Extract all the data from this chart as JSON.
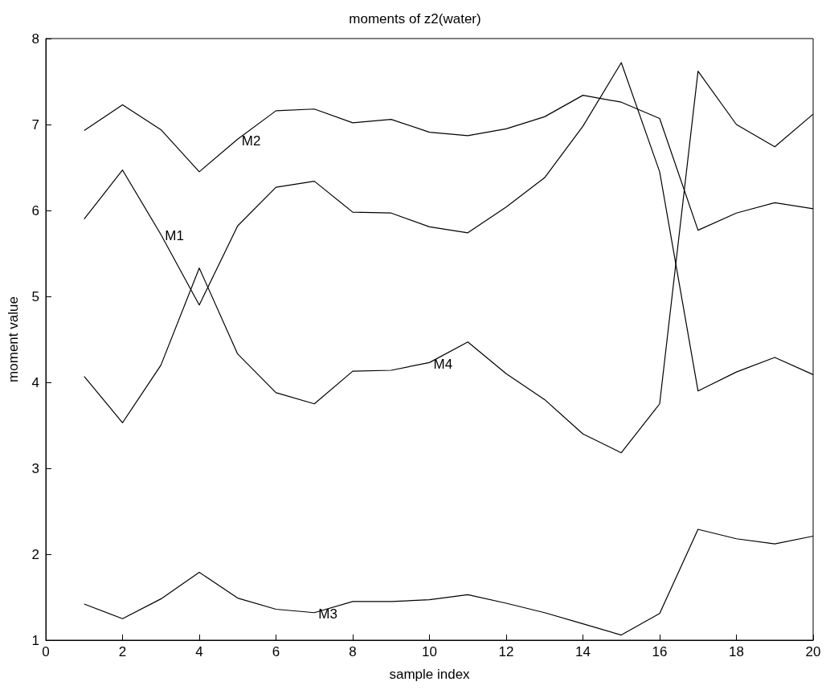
{
  "chart_data": {
    "type": "line",
    "title": "moments of z2(water)",
    "xlabel": "sample index",
    "ylabel": "moment value",
    "x": [
      1,
      2,
      3,
      4,
      5,
      6,
      7,
      8,
      9,
      10,
      11,
      12,
      13,
      14,
      15,
      16,
      17,
      18,
      19,
      20
    ],
    "series": [
      {
        "name": "M1",
        "color": "#000000",
        "values": [
          5.9,
          6.47,
          5.72,
          4.9,
          5.82,
          6.27,
          6.34,
          5.98,
          5.97,
          5.81,
          5.74,
          6.04,
          6.38,
          6.98,
          7.72,
          6.45,
          3.9,
          4.12,
          4.29,
          4.09
        ]
      },
      {
        "name": "M2",
        "color": "#000000",
        "values": [
          6.93,
          7.23,
          6.94,
          6.45,
          6.83,
          7.16,
          7.18,
          7.02,
          7.06,
          6.91,
          6.87,
          6.95,
          7.09,
          7.34,
          7.26,
          7.07,
          5.77,
          5.97,
          6.09,
          6.02
        ]
      },
      {
        "name": "M3",
        "color": "#000000",
        "values": [
          1.42,
          1.25,
          1.48,
          1.79,
          1.49,
          1.36,
          1.32,
          1.45,
          1.45,
          1.47,
          1.53,
          1.43,
          1.32,
          1.19,
          1.06,
          1.31,
          2.29,
          2.18,
          2.12,
          2.21
        ]
      },
      {
        "name": "M4",
        "color": "#000000",
        "values": [
          4.07,
          3.53,
          4.2,
          5.33,
          4.33,
          3.88,
          3.75,
          4.13,
          4.14,
          4.23,
          4.47,
          4.1,
          3.8,
          3.4,
          3.18,
          3.75,
          7.62,
          7.0,
          6.74,
          7.12
        ]
      }
    ],
    "xlim": [
      0,
      20
    ],
    "xticks": [
      0,
      2,
      4,
      6,
      8,
      10,
      12,
      14,
      16,
      18,
      20
    ],
    "ylim": [
      1,
      8
    ],
    "yticks": [
      1,
      2,
      3,
      4,
      5,
      6,
      7,
      8
    ],
    "grid": false,
    "legend": false,
    "marker": "none",
    "line_style": "solid"
  }
}
